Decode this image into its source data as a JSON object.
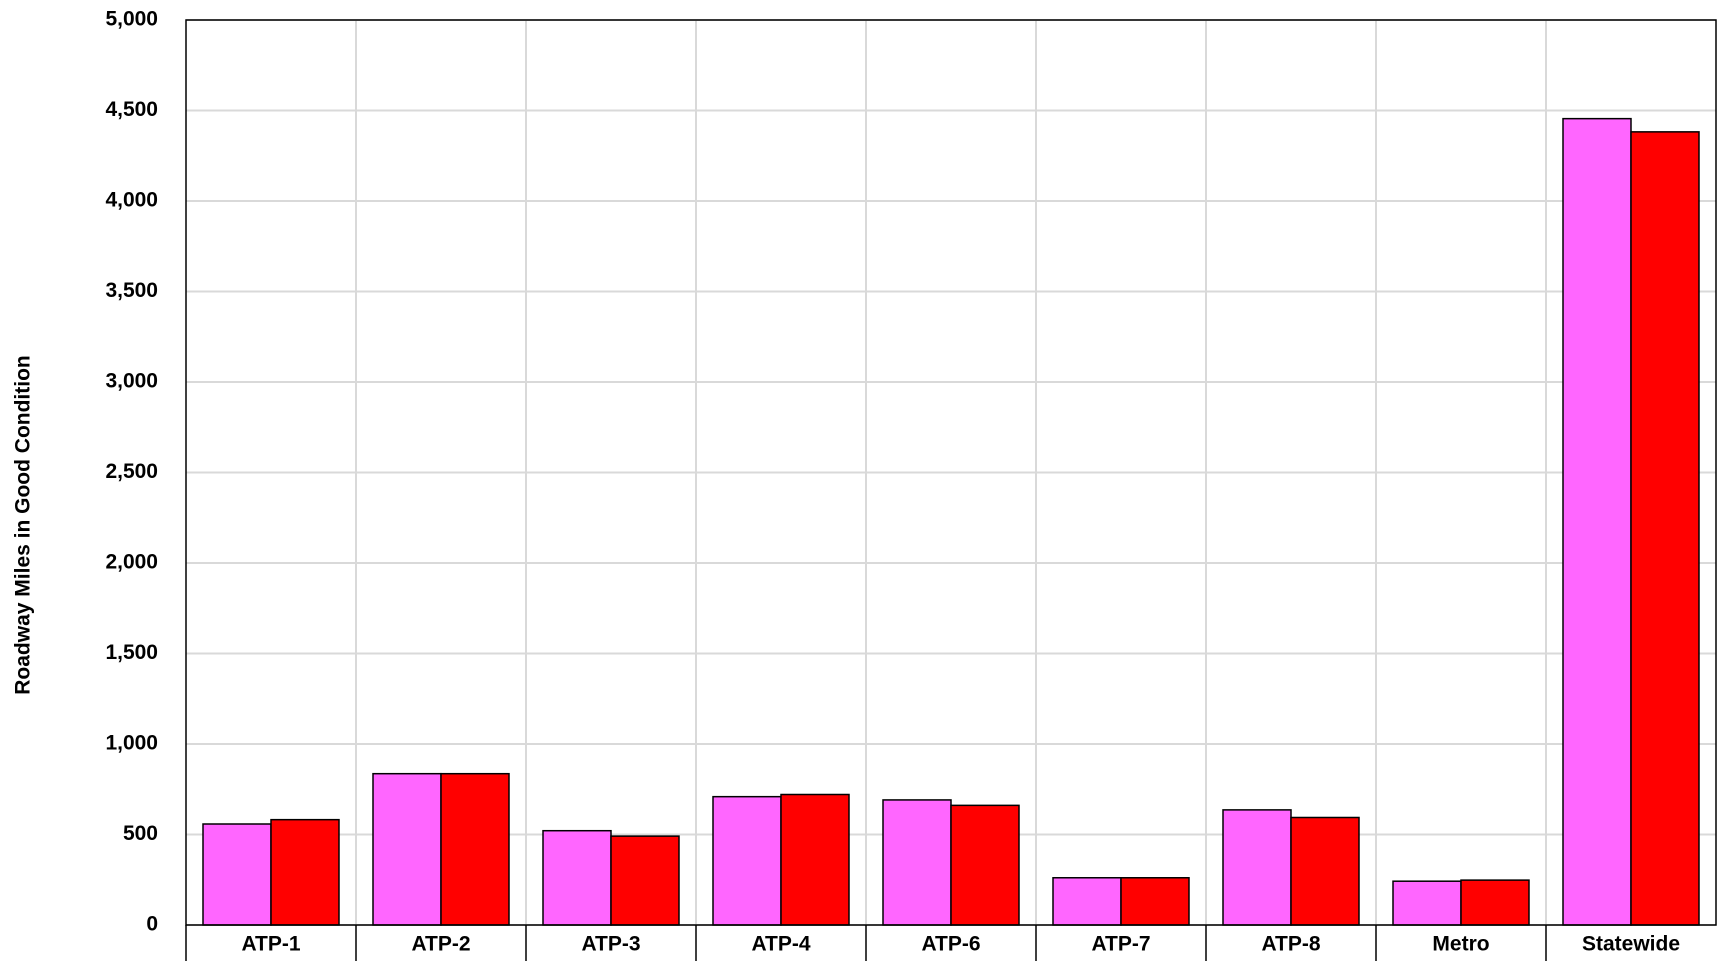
{
  "chart_data": {
    "type": "bar",
    "y_label": "Roadway Miles in Good Condition",
    "categories": [
      "ATP-1",
      "ATP-2",
      "ATP-3",
      "ATP-4",
      "ATP-6",
      "ATP-7",
      "ATP-8",
      "Metro",
      "Statewide"
    ],
    "series": [
      {
        "color": "#ff66ff",
        "values": [
          558,
          836,
          521,
          709,
          691,
          261,
          636,
          242,
          4455
        ]
      },
      {
        "color": "#ff0000",
        "values": [
          582,
          836,
          491,
          721,
          661,
          261,
          594,
          248,
          4382
        ]
      }
    ],
    "ylim": [
      0,
      5000
    ],
    "yticks": [
      0,
      500,
      {
        "value": 1000,
        "label": "1,000"
      },
      {
        "value": 1500,
        "label": "1,500"
      },
      {
        "value": 2000,
        "label": "2,000"
      },
      {
        "value": 2500,
        "label": "2,500"
      },
      {
        "value": 3000,
        "label": "3,000"
      },
      {
        "value": 3500,
        "label": "3,500"
      },
      {
        "value": 4000,
        "label": "4,000"
      },
      {
        "value": 4500,
        "label": "4,500"
      },
      {
        "value": 5000,
        "label": "5,000"
      }
    ],
    "grid": true
  }
}
